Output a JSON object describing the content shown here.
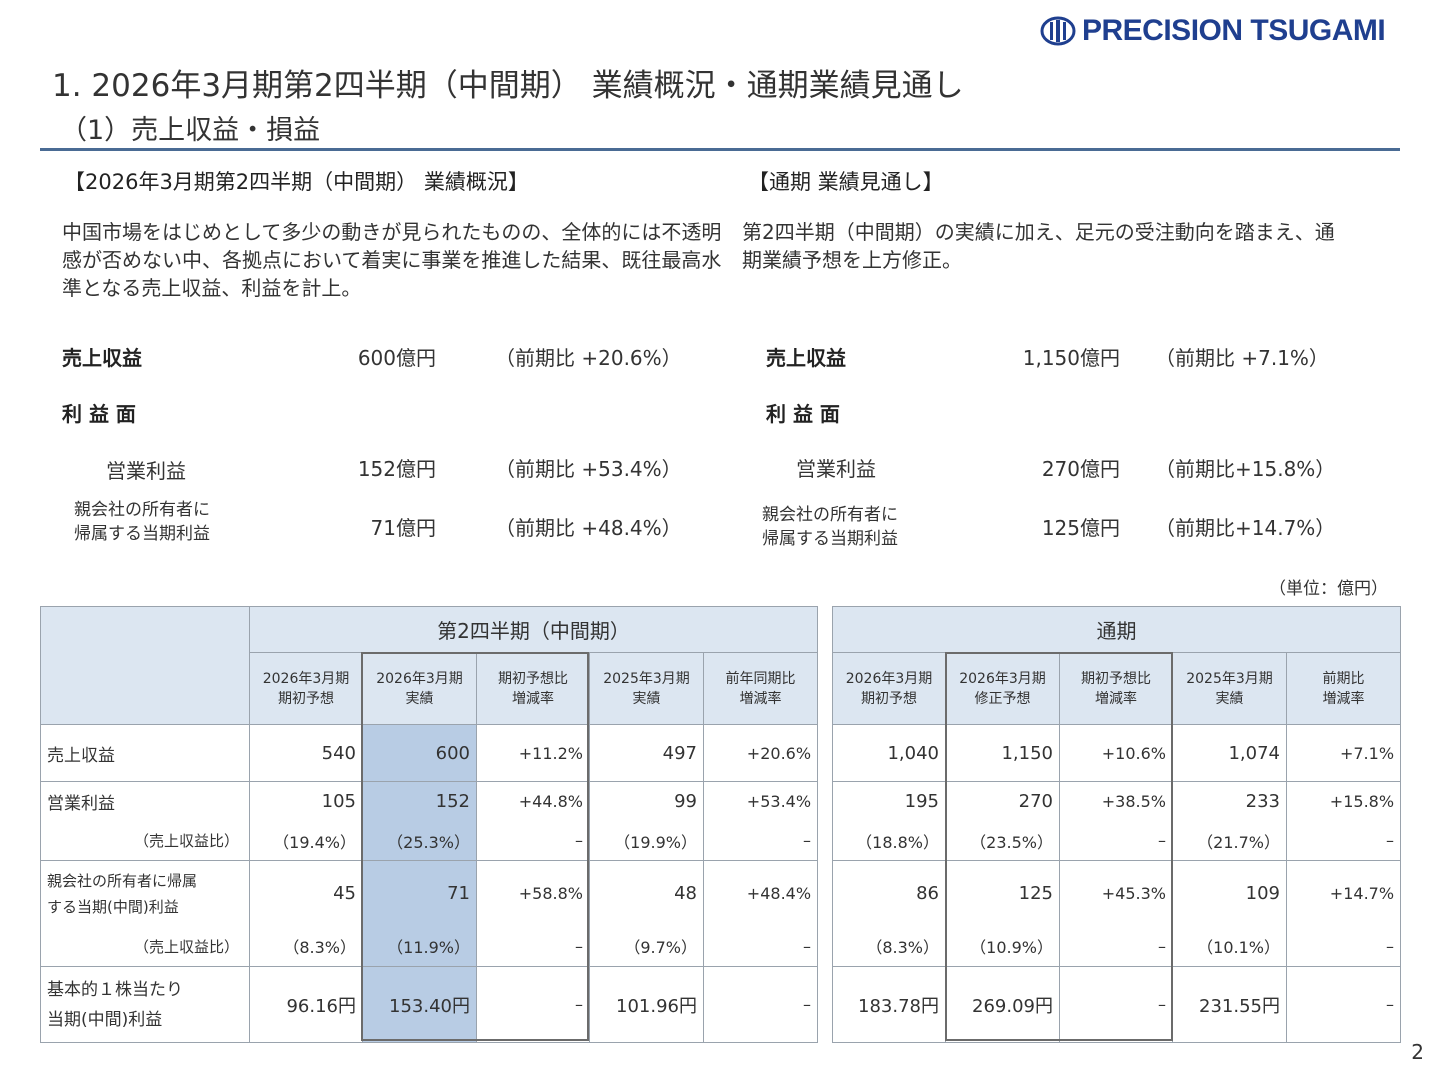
{
  "logo": {
    "brand": "PRECISION TSUGAMI"
  },
  "title": "1. 2026年3月期第2四半期（中間期） 業績概況・通期業績見通し",
  "subtitle": "（1）売上収益・損益",
  "left": {
    "heading": "【2026年3月期第2四半期（中間期） 業績概況】",
    "paragraph": "中国市場をはじめとして多少の動きが見られたものの、全体的には不透明感が否めない中、各拠点において着実に事業を推進した結果、既往最高水準となる売上収益、利益を計上。",
    "sales_label": "売上収益",
    "sales_value": "600億円",
    "sales_change": "（前期比 +20.6%）",
    "profit_heading": "利 益 面",
    "op_label": "営業利益",
    "op_value": "152億円",
    "op_change": "（前期比 +53.4%）",
    "net_label_1": "親会社の所有者に",
    "net_label_2": "帰属する当期利益",
    "net_value": "71億円",
    "net_change": "（前期比 +48.4%）"
  },
  "right": {
    "heading": "【通期 業績見通し】",
    "paragraph": "第2四半期（中間期）の実績に加え、足元の受注動向を踏まえ、通期業績予想を上方修正。",
    "sales_label": "売上収益",
    "sales_value": "1,150億円",
    "sales_change": "（前期比 +7.1%）",
    "profit_heading": "利 益 面",
    "op_label": "営業利益",
    "op_value": "270億円",
    "op_change": "（前期比+15.8%）",
    "net_label_1": "親会社の所有者に",
    "net_label_2": "帰属する当期利益",
    "net_value": "125億円",
    "net_change": "（前期比+14.7%）"
  },
  "unit": "（単位：億円）",
  "table": {
    "group_q2": "第2四半期（中間期）",
    "group_fy": "通期",
    "q2_cols": [
      {
        "line1": "2026年3月期",
        "line2": "期初予想"
      },
      {
        "line1": "2026年3月期",
        "line2": "実績"
      },
      {
        "line1": "期初予想比",
        "line2": "増減率"
      },
      {
        "line1": "2025年3月期",
        "line2": "実績"
      },
      {
        "line1": "前年同期比",
        "line2": "増減率"
      }
    ],
    "fy_cols": [
      {
        "line1": "2026年3月期",
        "line2": "期初予想"
      },
      {
        "line1": "2026年3月期",
        "line2": "修正予想"
      },
      {
        "line1": "期初予想比",
        "line2": "増減率"
      },
      {
        "line1": "2025年3月期",
        "line2": "実績"
      },
      {
        "line1": "前期比",
        "line2": "増減率"
      }
    ],
    "rows": [
      {
        "label": "売上収益",
        "q2": [
          "540",
          "600",
          "+11.2%",
          "497",
          "+20.6%"
        ],
        "fy": [
          "1,040",
          "1,150",
          "+10.6%",
          "1,074",
          "+7.1%"
        ]
      },
      {
        "label": "営業利益",
        "q2": [
          "105",
          "152",
          "+44.8%",
          "99",
          "+53.4%"
        ],
        "fy": [
          "195",
          "270",
          "+38.5%",
          "233",
          "+15.8%"
        ]
      },
      {
        "label": "（売上収益比）",
        "q2": [
          "（19.4%）",
          "（25.3%）",
          "–",
          "（19.9%）",
          "–"
        ],
        "fy": [
          "（18.8%）",
          "（23.5%）",
          "–",
          "（21.7%）",
          "–"
        ]
      },
      {
        "label_1": "親会社の所有者に帰属",
        "label_2": "する当期(中間)利益",
        "q2": [
          "45",
          "71",
          "+58.8%",
          "48",
          "+48.4%"
        ],
        "fy": [
          "86",
          "125",
          "+45.3%",
          "109",
          "+14.7%"
        ]
      },
      {
        "label": "（売上収益比）",
        "q2": [
          "（8.3%）",
          "（11.9%）",
          "–",
          "（9.7%）",
          "–"
        ],
        "fy": [
          "（8.3%）",
          "（10.9%）",
          "–",
          "（10.1%）",
          "–"
        ]
      },
      {
        "label_1": "基本的１株当たり",
        "label_2": "当期(中間)利益",
        "q2": [
          "96.16円",
          "153.40円",
          "–",
          "101.96円",
          "–"
        ],
        "fy": [
          "183.78円",
          "269.09円",
          "–",
          "231.55円",
          "–"
        ]
      }
    ]
  },
  "page_number": "2",
  "colors": {
    "brand": "#1f3f8f",
    "rule": "#4a6b94",
    "header_bg": "#dce6f1",
    "highlight": "#b8cce4"
  }
}
